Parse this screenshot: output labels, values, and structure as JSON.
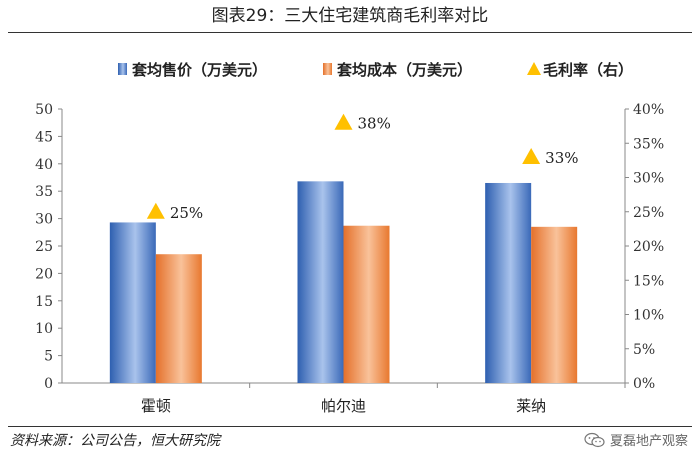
{
  "title": "图表29：三大住宅建筑商毛利率对比",
  "source": "资料来源：公司公告，恒大研究院",
  "watermark": {
    "text": "夏磊地产观察",
    "icon": "wechat-icon"
  },
  "colors": {
    "price": "#4472c4",
    "cost": "#ed7d31",
    "margin": "#ffc000"
  },
  "chart_data": {
    "type": "bar",
    "categories": [
      "霍顿",
      "帕尔迪",
      "莱纳"
    ],
    "series": [
      {
        "name": "套均售价（万美元）",
        "type": "bar",
        "axis": "left",
        "values": [
          29.3,
          36.8,
          36.5
        ]
      },
      {
        "name": "套均成本（万美元）",
        "type": "bar",
        "axis": "left",
        "values": [
          23.5,
          28.7,
          28.5
        ]
      },
      {
        "name": "毛利率（右）",
        "type": "scatter",
        "marker": "triangle",
        "axis": "right",
        "values": [
          0.25,
          0.38,
          0.33
        ],
        "labels": [
          "25%",
          "38%",
          "33%"
        ]
      }
    ],
    "y_left": {
      "min": 0,
      "max": 50,
      "ticks": [
        "0",
        "5",
        "10",
        "15",
        "20",
        "25",
        "30",
        "35",
        "40",
        "45",
        "50"
      ]
    },
    "y_right": {
      "min": 0,
      "max": 0.4,
      "ticks": [
        "0%",
        "5%",
        "10%",
        "15%",
        "20%",
        "25%",
        "30%",
        "35%",
        "40%"
      ]
    },
    "legend": {
      "position": "top"
    },
    "grid": false
  }
}
